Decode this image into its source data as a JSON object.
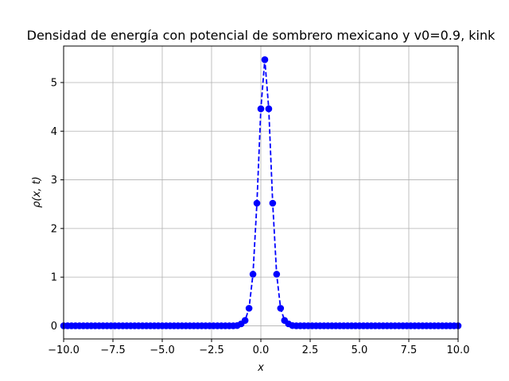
{
  "chart_data": {
    "type": "line",
    "title": "Densidad de energía con potencial de sombrero mexicano y v0=0.9, kink",
    "xlabel": "x",
    "ylabel": "ρ(x, t)",
    "xlim": [
      -10,
      10
    ],
    "ylim": [
      -0.27,
      5.75
    ],
    "x_ticks": [
      -10,
      -7.5,
      -5,
      -2.5,
      0,
      2.5,
      5,
      7.5,
      10
    ],
    "x_tick_labels": [
      "−10.0",
      "−7.5",
      "−5.0",
      "−2.5",
      "0.0",
      "2.5",
      "5.0",
      "7.5",
      "10.0"
    ],
    "y_ticks": [
      0,
      1,
      2,
      3,
      4,
      5
    ],
    "y_tick_labels": [
      "0",
      "1",
      "2",
      "3",
      "4",
      "5"
    ],
    "grid": true,
    "line_color": "#0000ff",
    "line_style": "dashed",
    "marker": "circle",
    "series": [
      {
        "x_start": -10,
        "x_step": 0.2,
        "values": [
          0,
          0,
          0,
          0,
          0,
          0,
          0,
          0,
          0,
          0,
          0,
          0,
          0,
          0,
          0,
          0,
          0,
          0,
          0,
          0,
          0,
          0,
          0,
          0,
          0,
          0,
          0,
          0,
          0,
          0,
          0,
          0,
          0,
          0,
          0,
          0,
          0,
          0,
          0,
          0,
          0,
          0,
          0,
          0,
          0.005,
          0.04,
          0.11,
          0.36,
          1.06,
          2.52,
          4.46,
          5.47,
          4.46,
          2.52,
          1.06,
          0.36,
          0.11,
          0.04,
          0.005,
          0,
          0,
          0,
          0,
          0,
          0,
          0,
          0,
          0,
          0,
          0,
          0,
          0,
          0,
          0,
          0,
          0,
          0,
          0,
          0,
          0,
          0,
          0,
          0,
          0,
          0,
          0,
          0,
          0,
          0,
          0,
          0,
          0,
          0,
          0,
          0,
          0,
          0,
          0,
          0,
          0,
          0
        ]
      }
    ]
  }
}
